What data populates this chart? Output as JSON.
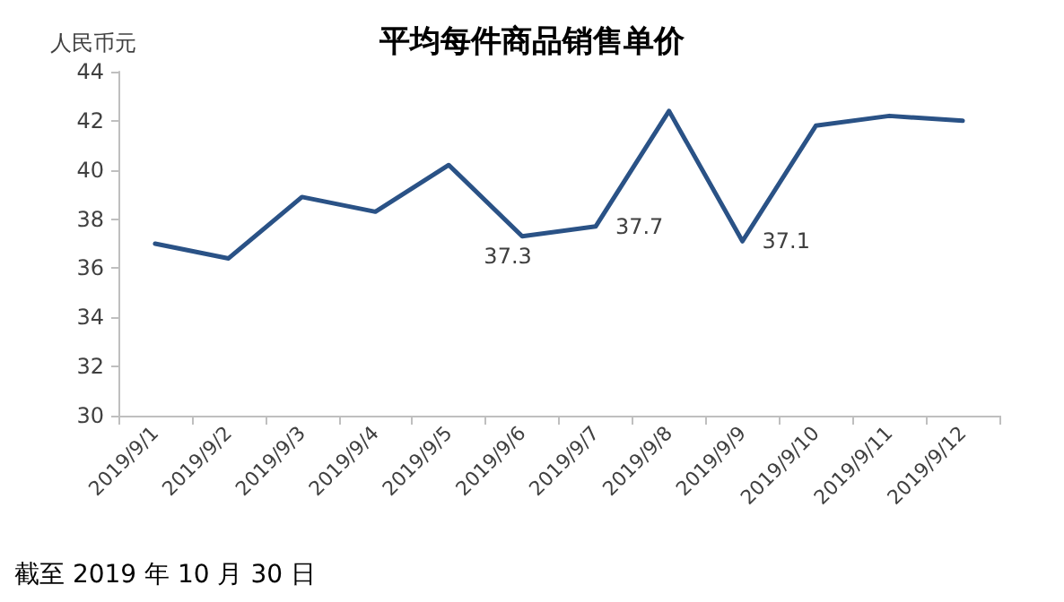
{
  "chart_data": {
    "type": "line",
    "title": "平均每件商品销售单价",
    "ylabel": "人民币元",
    "categories": [
      "2019/9/1",
      "2019/9/2",
      "2019/9/3",
      "2019/9/4",
      "2019/9/5",
      "2019/9/6",
      "2019/9/7",
      "2019/9/8",
      "2019/9/9",
      "2019/9/10",
      "2019/9/11",
      "2019/9/12"
    ],
    "series": [
      {
        "color": "#2a5286",
        "values": [
          37.0,
          36.4,
          38.9,
          38.3,
          40.2,
          37.3,
          37.7,
          42.4,
          37.1,
          41.8,
          42.2,
          42.0
        ],
        "value_labels": [
          null,
          null,
          null,
          null,
          null,
          "37.3",
          "37.7",
          null,
          "37.1",
          null,
          null,
          null
        ]
      }
    ],
    "ylim": [
      30,
      44
    ],
    "yticks": [
      30,
      32,
      34,
      36,
      38,
      40,
      42,
      44
    ],
    "grid": false,
    "marker": "none",
    "line_style": "solid",
    "annotations": [
      "截至 2019 年 10 月 30 日"
    ]
  }
}
